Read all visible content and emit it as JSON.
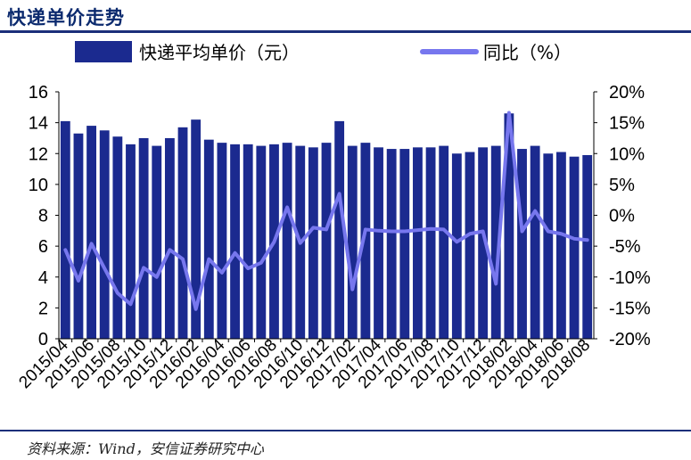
{
  "page": {
    "title": "快递单价走势",
    "source": "资料来源：Wind，安信证券研究中心"
  },
  "chart_data": {
    "type": "bar+line",
    "title": "快递单价走势",
    "categories": [
      "2015/04",
      "2015/05",
      "2015/06",
      "2015/07",
      "2015/08",
      "2015/09",
      "2015/10",
      "2015/11",
      "2015/12",
      "2016/01",
      "2016/02",
      "2016/03",
      "2016/04",
      "2016/05",
      "2016/06",
      "2016/07",
      "2016/08",
      "2016/09",
      "2016/10",
      "2016/11",
      "2016/12",
      "2017/01",
      "2017/02",
      "2017/03",
      "2017/04",
      "2017/05",
      "2017/06",
      "2017/07",
      "2017/08",
      "2017/09",
      "2017/10",
      "2017/11",
      "2017/12",
      "2018/01",
      "2018/02",
      "2018/03",
      "2018/04",
      "2018/05",
      "2018/06",
      "2018/07",
      "2018/08"
    ],
    "tick_labels": [
      "2015/04",
      "2015/06",
      "2015/08",
      "2015/10",
      "2015/12",
      "2016/02",
      "2016/04",
      "2016/06",
      "2016/08",
      "2016/10",
      "2016/12",
      "2017/02",
      "2017/04",
      "2017/06",
      "2017/08",
      "2017/10",
      "2017/12",
      "2018/02",
      "2018/04",
      "2018/06",
      "2018/08"
    ],
    "series": [
      {
        "name": "快递平均单价（元）",
        "type": "bar",
        "axis": "left",
        "color": "#1b2a8f",
        "values": [
          14.1,
          13.3,
          13.8,
          13.5,
          13.1,
          12.6,
          13.0,
          12.5,
          13.0,
          13.7,
          14.2,
          12.9,
          12.7,
          12.6,
          12.6,
          12.5,
          12.6,
          12.7,
          12.5,
          12.4,
          12.7,
          14.1,
          12.5,
          12.7,
          12.4,
          12.3,
          12.3,
          12.4,
          12.4,
          12.5,
          12.0,
          12.1,
          12.4,
          12.5,
          14.6,
          12.3,
          12.5,
          12.0,
          12.1,
          11.8,
          11.9
        ]
      },
      {
        "name": "同比（%）",
        "type": "line",
        "axis": "right",
        "color": "#7777ee",
        "values": [
          -5.6,
          -10.6,
          -4.6,
          -8.6,
          -12.6,
          -14.4,
          -8.5,
          -10.0,
          -5.6,
          -7.1,
          -15.2,
          -7.1,
          -9.3,
          -6.1,
          -8.6,
          -7.7,
          -4.3,
          1.3,
          -4.5,
          -2.0,
          -2.3,
          3.5,
          -12.0,
          -2.3,
          -2.5,
          -2.6,
          -2.6,
          -2.4,
          -2.2,
          -2.3,
          -4.3,
          -3.0,
          -2.6,
          -11.1,
          16.6,
          -2.6,
          0.7,
          -2.6,
          -3.0,
          -3.8,
          -4.0
        ]
      }
    ],
    "y_left": {
      "min": 0,
      "max": 16,
      "ticks": [
        0,
        2,
        4,
        6,
        8,
        10,
        12,
        14,
        16
      ]
    },
    "y_right": {
      "min": -20,
      "max": 20,
      "ticks": [
        -20,
        -15,
        -10,
        -5,
        0,
        5,
        10,
        15,
        20
      ],
      "tick_labels": [
        "-20%",
        "-15%",
        "-10%",
        "-5%",
        "0%",
        "5%",
        "10%",
        "15%",
        "20%"
      ]
    },
    "legend_position": "top",
    "grid": false
  }
}
